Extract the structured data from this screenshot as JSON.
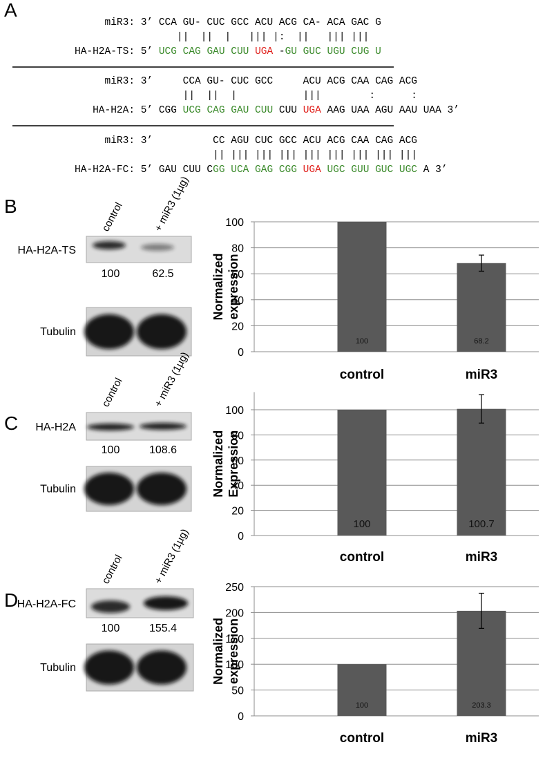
{
  "panel_letters": [
    "A",
    "B",
    "C",
    "D"
  ],
  "alignments": [
    {
      "rows": [
        [
          {
            "text": "     miR3: 3’ CCA GU- CUC GCC ACU ACG CA- ACA GAC G",
            "color": "#000000"
          }
        ],
        [
          {
            "text": "                 ||  ||  |   ||| |:  ||   ||| |||",
            "color": "#000000"
          }
        ],
        [
          {
            "text": "HA-H2A-TS: 5’ ",
            "color": "#000000"
          },
          {
            "text": "UCG CAG GAU CUU ",
            "color": "#3a8a2a"
          },
          {
            "text": "UGA",
            "color": "#e0201b"
          },
          {
            "text": " -",
            "color": "#000000"
          },
          {
            "text": "GU GUC UGU CUG U",
            "color": "#3a8a2a"
          }
        ]
      ]
    },
    {
      "rows": [
        [
          {
            "text": "     miR3: 3’     CCA GU- CUC GCC     ACU ACG CAA CAG ACG",
            "color": "#000000"
          }
        ],
        [
          {
            "text": "                  ||  ||  |           |||        :      :",
            "color": "#000000"
          }
        ],
        [
          {
            "text": "   HA-H2A: 5’ CGG ",
            "color": "#000000"
          },
          {
            "text": "UCG CAG GAU CUU",
            "color": "#3a8a2a"
          },
          {
            "text": " CUU ",
            "color": "#000000"
          },
          {
            "text": "UGA",
            "color": "#e0201b"
          },
          {
            "text": " AAG UAA AGU AAU UAA 3’",
            "color": "#000000"
          }
        ]
      ]
    },
    {
      "rows": [
        [
          {
            "text": "     miR3: 3’          CC AGU CUC GCC ACU ACG CAA CAG ACG",
            "color": "#000000"
          }
        ],
        [
          {
            "text": "                       || ||| ||| ||| ||| ||| ||| ||| |||",
            "color": "#000000"
          }
        ],
        [
          {
            "text": "HA-H2A-FC: 5’ GAU CUU C",
            "color": "#000000"
          },
          {
            "text": "GG UCA GAG CGG ",
            "color": "#3a8a2a"
          },
          {
            "text": "UGA",
            "color": "#e0201b"
          },
          {
            "text": " ",
            "color": "#000000"
          },
          {
            "text": "UGC GUU GUC UGC",
            "color": "#3a8a2a"
          },
          {
            "text": " A 3’",
            "color": "#000000"
          }
        ]
      ]
    }
  ],
  "blots": [
    {
      "lanes": [
        "control",
        "+ miR3 (1µg)"
      ],
      "target": "HA-H2A-TS",
      "quant": [
        100,
        62.5
      ],
      "loading": "Tubulin"
    },
    {
      "lanes": [
        "control",
        "+ miR3 (1µg)"
      ],
      "target": "HA-H2A",
      "quant": [
        100,
        108.6
      ],
      "loading": "Tubulin"
    },
    {
      "lanes": [
        "control",
        "+ miR3 (1µg)"
      ],
      "target": "HA-H2A-FC",
      "quant": [
        100,
        155.4
      ],
      "loading": "Tubulin"
    }
  ],
  "chart_data": [
    {
      "type": "bar",
      "categories": [
        "control",
        "miR3"
      ],
      "values": [
        100,
        68.2
      ],
      "errors": [
        null,
        6.2
      ],
      "ylabel": [
        "Normalized",
        "expression"
      ],
      "ylim": [
        0,
        100
      ],
      "yticks": [
        0,
        20,
        40,
        60,
        80,
        100
      ],
      "color": "#595959",
      "grid": true
    },
    {
      "type": "bar",
      "categories": [
        "control",
        "miR3"
      ],
      "values": [
        100,
        100.7
      ],
      "errors": [
        null,
        11.3
      ],
      "ylabel": [
        "Normalized",
        "Expression"
      ],
      "ylim": [
        0,
        114
      ],
      "yticks": [
        0,
        20,
        40,
        60,
        80,
        100
      ],
      "color": "#595959",
      "grid": true
    },
    {
      "type": "bar",
      "categories": [
        "control",
        "miR3"
      ],
      "values": [
        100,
        203.3
      ],
      "errors": [
        null,
        34
      ],
      "ylabel": [
        "Normalized",
        "expression"
      ],
      "ylim": [
        0,
        250
      ],
      "yticks": [
        0,
        50,
        100,
        150,
        200,
        250
      ],
      "color": "#595959",
      "grid": true
    }
  ]
}
